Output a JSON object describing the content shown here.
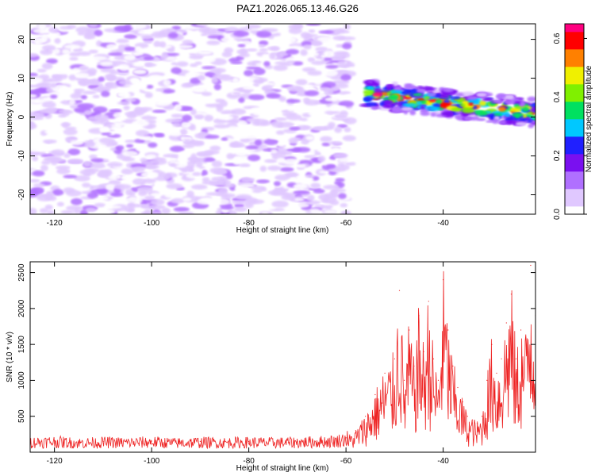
{
  "title": "PAZ1.2026.065.13.46.G26",
  "chart_data": [
    {
      "type": "heatmap",
      "xlabel": "Height of straight line (km)",
      "ylabel": "Frequency (Hz)",
      "xlim": [
        -125,
        -21
      ],
      "ylim": [
        -25,
        24
      ],
      "xticks": [
        -120,
        -100,
        -80,
        -60,
        -40
      ],
      "yticks": [
        -20,
        -10,
        0,
        10,
        20
      ],
      "colorbar": {
        "label": "Normalized spectral amplitude",
        "range": [
          0,
          0.65
        ],
        "ticks": [
          0.0,
          0.2,
          0.4,
          0.6
        ],
        "colors": [
          "#ffffff",
          "#e0c8ff",
          "#b070ff",
          "#7a10f0",
          "#2020ff",
          "#00c8ff",
          "#00e060",
          "#80f000",
          "#f0f000",
          "#ff8000",
          "#ff0000",
          "#ff0080"
        ]
      },
      "features": [
        {
          "region": "noise",
          "x_range": [
            -125,
            -59
          ],
          "freq_range": [
            -25,
            24
          ],
          "amplitude_range": [
            0.02,
            0.12
          ]
        },
        {
          "region": "signal",
          "x_start": -56,
          "x_end": -21,
          "freq_start": 6,
          "freq_end": 1,
          "peak_amplitude": 0.65
        }
      ]
    },
    {
      "type": "line",
      "xlabel": "Height of straight line (km)",
      "ylabel": "SNR (10 * v/v)",
      "xlim": [
        -125,
        -21
      ],
      "ylim": [
        0,
        2650
      ],
      "xticks": [
        -120,
        -100,
        -80,
        -60,
        -40
      ],
      "yticks": [
        500,
        1000,
        1500,
        2000,
        2500
      ],
      "color": "#ee2222",
      "series": [
        {
          "name": "SNR",
          "x": [
            -125,
            -120,
            -115,
            -110,
            -105,
            -100,
            -95,
            -90,
            -85,
            -80,
            -75,
            -70,
            -65,
            -62,
            -60,
            -58,
            -56,
            -54,
            -52,
            -50,
            -49,
            -48,
            -47,
            -46,
            -45,
            -44,
            -43,
            -42,
            -41,
            -40,
            -39,
            -38,
            -37,
            -36,
            -35,
            -34,
            -33,
            -32,
            -31,
            -30,
            -29,
            -28,
            -27,
            -26,
            -25,
            -24,
            -23,
            -22,
            -21
          ],
          "y": [
            150,
            160,
            140,
            150,
            145,
            155,
            140,
            150,
            145,
            150,
            145,
            150,
            160,
            170,
            200,
            300,
            500,
            800,
            1100,
            1300,
            2250,
            1000,
            1700,
            1200,
            1900,
            1400,
            2100,
            1300,
            1000,
            2400,
            1700,
            1200,
            900,
            700,
            500,
            450,
            400,
            500,
            1000,
            1500,
            1100,
            1300,
            1800,
            2200,
            1300,
            1700,
            1600,
            2600,
            1900
          ]
        }
      ]
    }
  ]
}
